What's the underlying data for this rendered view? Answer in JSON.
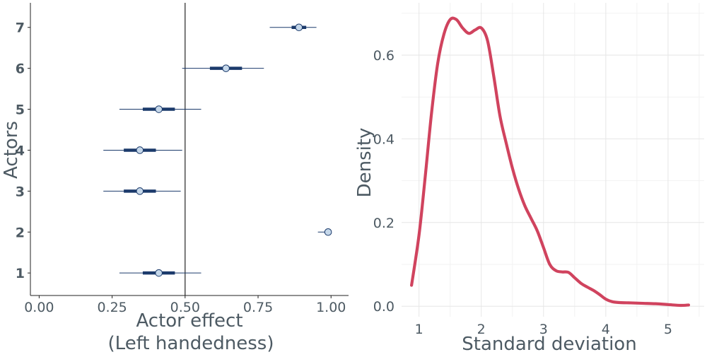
{
  "chart_data": [
    {
      "type": "forest",
      "xlabel_line1": "Actor effect",
      "xlabel_line2": "(Left handedness)",
      "ylabel": "Actors",
      "xlim": [
        -0.03,
        1.06
      ],
      "ylim": [
        0.45,
        7.6
      ],
      "reference_line": 0.5,
      "x_ticks": [
        0.0,
        0.25,
        0.5,
        0.75,
        1.0
      ],
      "x_tick_labels": [
        "0.00",
        "0.25",
        "0.50",
        "0.75",
        "1.00"
      ],
      "y_ticks": [
        1,
        2,
        3,
        4,
        5,
        6,
        7
      ],
      "y_tick_labels": [
        "1",
        "2",
        "3",
        "4",
        "5",
        "6",
        "7"
      ],
      "grid": false,
      "series_color": "#1b3a6b",
      "point_fill": "#c6d8ea",
      "actors": [
        {
          "actor": 1,
          "median": 0.41,
          "inner": [
            0.355,
            0.465
          ],
          "outer": [
            0.275,
            0.555
          ]
        },
        {
          "actor": 2,
          "median": 0.99,
          "inner": [
            0.985,
            0.995
          ],
          "outer": [
            0.955,
            1.0
          ]
        },
        {
          "actor": 3,
          "median": 0.345,
          "inner": [
            0.29,
            0.4
          ],
          "outer": [
            0.22,
            0.485
          ]
        },
        {
          "actor": 4,
          "median": 0.345,
          "inner": [
            0.29,
            0.4
          ],
          "outer": [
            0.22,
            0.49
          ]
        },
        {
          "actor": 5,
          "median": 0.41,
          "inner": [
            0.355,
            0.465
          ],
          "outer": [
            0.275,
            0.555
          ]
        },
        {
          "actor": 6,
          "median": 0.64,
          "inner": [
            0.585,
            0.695
          ],
          "outer": [
            0.49,
            0.77
          ]
        },
        {
          "actor": 7,
          "median": 0.89,
          "inner": [
            0.865,
            0.915
          ],
          "outer": [
            0.79,
            0.95
          ]
        }
      ]
    },
    {
      "type": "line",
      "xlabel": "Standard deviation",
      "ylabel": "Density",
      "xlim": [
        0.72,
        5.58
      ],
      "ylim": [
        -0.025,
        0.725
      ],
      "x_ticks": [
        1,
        2,
        3,
        4,
        5
      ],
      "x_tick_labels": [
        "1",
        "2",
        "3",
        "4",
        "5"
      ],
      "y_ticks": [
        0.0,
        0.2,
        0.4,
        0.6
      ],
      "y_tick_labels": [
        "0.0",
        "0.2",
        "0.4",
        "0.6"
      ],
      "grid": true,
      "line_color": "#d0435e",
      "x": [
        0.88,
        1.0,
        1.1,
        1.2,
        1.3,
        1.4,
        1.5,
        1.6,
        1.7,
        1.8,
        1.9,
        2.0,
        2.1,
        2.2,
        2.3,
        2.4,
        2.5,
        2.6,
        2.7,
        2.8,
        2.9,
        3.0,
        3.1,
        3.2,
        3.3,
        3.4,
        3.5,
        3.6,
        3.7,
        3.8,
        3.9,
        4.0,
        4.1,
        4.2,
        4.4,
        4.6,
        4.8,
        5.0,
        5.2,
        5.33
      ],
      "y": [
        0.05,
        0.17,
        0.31,
        0.46,
        0.58,
        0.65,
        0.685,
        0.685,
        0.665,
        0.652,
        0.66,
        0.665,
        0.635,
        0.55,
        0.455,
        0.39,
        0.33,
        0.28,
        0.24,
        0.21,
        0.18,
        0.14,
        0.1,
        0.085,
        0.082,
        0.081,
        0.068,
        0.055,
        0.046,
        0.038,
        0.028,
        0.017,
        0.011,
        0.009,
        0.008,
        0.007,
        0.006,
        0.004,
        0.002,
        0.003
      ]
    }
  ]
}
